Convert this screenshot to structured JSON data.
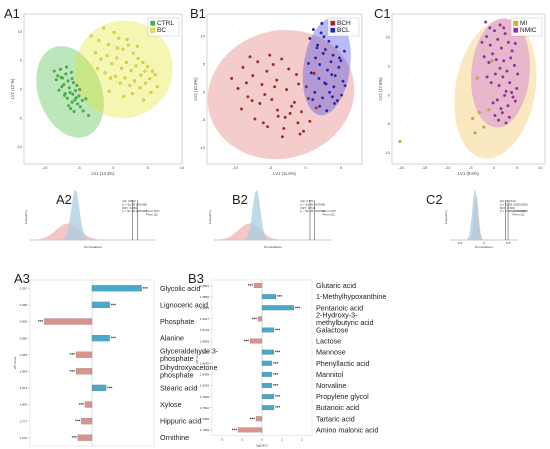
{
  "colors": {
    "ctrl": "#3dbb3d",
    "bc": "#e6e626",
    "bch": "#b22222",
    "bcl": "#2222cc",
    "mi": "#d9b030",
    "nmic": "#9a28b8",
    "bar_pos": "#4aa8c8",
    "bar_neg": "#d9948f"
  },
  "panels": {
    "A1": "A1",
    "B1": "B1",
    "C1": "C1",
    "A2": "A2",
    "B2": "B2",
    "C2": "C2",
    "A3": "A3",
    "B3": "B3"
  },
  "chart_data": [
    {
      "id": "A1",
      "type": "scatter",
      "xlabel": "LV1 (14.3%)",
      "ylabel": "LV2 (12 %)",
      "xticks": [
        "-10",
        "-5",
        "0",
        "5",
        "10"
      ],
      "yticks": [
        "10",
        "5",
        "0",
        "-5",
        "-10"
      ],
      "series": [
        {
          "name": "CTRL",
          "color": "#3dbb3d",
          "x": [
            -8.6,
            -8.1,
            -7.7,
            -7.4,
            -7.2,
            -6.9,
            -6.6,
            -6.4,
            -6.1,
            -5.8,
            -5.5,
            -5.3,
            -5.0,
            -8.3,
            -7.9,
            -7.5,
            -7.0,
            -6.7,
            -6.3,
            -6.0,
            -5.6,
            -5.2,
            -4.8,
            -4.5,
            -7.6,
            -7.1,
            -6.8,
            -6.2,
            -5.9,
            -5.4,
            -4.9,
            -4.4,
            -4.0,
            -3.6,
            -6.5,
            -6.0,
            -5.7
          ],
          "y": [
            3.1,
            2.3,
            3.4,
            1.9,
            0.8,
            2.6,
            1.4,
            0.2,
            2.9,
            1.1,
            -0.3,
            0.6,
            -1.2,
            1.6,
            -0.2,
            0.4,
            -0.8,
            -1.6,
            -0.6,
            -2.3,
            -1.9,
            -2.6,
            -3.1,
            -2.0,
            2.0,
            -1.1,
            3.8,
            -3.4,
            -0.9,
            -1.5,
            -0.1,
            -3.8,
            -1.7,
            -4.6,
            -2.9,
            1.8,
            -3.9
          ]
        },
        {
          "name": "BC",
          "color": "#e6e626",
          "x": [
            -3.2,
            -2.1,
            -1.4,
            -0.7,
            0.1,
            0.8,
            1.4,
            2.2,
            2.9,
            3.6,
            4.3,
            5.0,
            5.7,
            -2.6,
            -1.8,
            -0.9,
            -0.2,
            0.5,
            1.2,
            1.9,
            2.6,
            3.3,
            4.0,
            4.6,
            5.3,
            6.1,
            -1.2,
            -0.4,
            0.3,
            1.0,
            1.7,
            2.4,
            3.1,
            3.9,
            4.7,
            5.5,
            0.6,
            2.0,
            3.5,
            -2.3,
            -0.6,
            1.5,
            2.8,
            4.4,
            6.4
          ],
          "y": [
            9.2,
            8.4,
            10.6,
            7.7,
            9.8,
            8.8,
            6.9,
            7.6,
            6.2,
            5.3,
            4.6,
            3.9,
            3.1,
            6.3,
            5.2,
            5.8,
            4.4,
            5.4,
            3.6,
            4.6,
            3.2,
            4.0,
            2.4,
            3.1,
            1.8,
            2.5,
            2.8,
            1.9,
            2.2,
            1.0,
            1.9,
            0.6,
            1.4,
            0.2,
            1.0,
            -0.6,
            7.1,
            8.6,
            7.4,
            3.6,
            -0.4,
            -1.3,
            -0.8,
            -1.9,
            0.4
          ]
        }
      ],
      "legend": "top-right"
    },
    {
      "id": "B1",
      "type": "scatter",
      "xlabel": "LV1 (11.5%)",
      "ylabel": "LV2 (10.9%)",
      "xticks": [
        "-10",
        "-5",
        "0",
        "5"
      ],
      "yticks": [
        "10",
        "5",
        "0",
        "-5",
        "-10"
      ],
      "series": [
        {
          "name": "BCH",
          "color": "#b22222",
          "x": [
            -10.5,
            -9.6,
            -8.9,
            -8.2,
            -7.5,
            -6.8,
            -6.2,
            -5.5,
            -4.8,
            -4.1,
            -3.4,
            -2.7,
            -2.0,
            -1.3,
            -0.6,
            0.1,
            -9.1,
            -7.9,
            -6.5,
            -5.1,
            -3.9,
            -2.4,
            -1.1,
            0.4,
            1.2,
            -8.4,
            -7.2,
            -5.8,
            -4.4,
            -3.1,
            -1.6,
            -0.3,
            -6.0,
            -4.6,
            -3.3,
            -2.2,
            -1.0,
            0.6,
            1.5,
            -7.6,
            -2.9,
            -0.8,
            -5.4,
            -4.0
          ],
          "y": [
            2.4,
            0.6,
            4.4,
            -0.9,
            2.9,
            5.4,
            1.3,
            3.7,
            -1.4,
            2.1,
            5.9,
            0.4,
            -2.6,
            3.1,
            -3.6,
            0.9,
            -3.1,
            6.3,
            -2.1,
            6.6,
            -4.4,
            4.1,
            -5.6,
            -1.2,
            3.3,
            1.6,
            -4.9,
            -0.5,
            0.9,
            -6.6,
            -1.9,
            -7.1,
            -5.6,
            4.9,
            -8.1,
            -3.9,
            1.4,
            -5.3,
            -2.9,
            -1.6,
            -4.6,
            -7.6,
            -6.3,
            -3.3
          ]
        },
        {
          "name": "BCL",
          "color": "#2222cc",
          "x": [
            0.6,
            1.1,
            1.7,
            2.2,
            2.8,
            3.3,
            3.9,
            4.4,
            5.0,
            5.5,
            1.4,
            2.0,
            2.5,
            3.1,
            3.6,
            4.2,
            4.7,
            5.3,
            0.8,
            1.9,
            2.9,
            4.0,
            5.1,
            1.3,
            2.4,
            3.4,
            4.5,
            2.0,
            3.0,
            4.1,
            1.6,
            2.6,
            3.7,
            4.8,
            2.3,
            3.5,
            4.6,
            1.0,
            5.6,
            0.4,
            2.7,
            3.8
          ],
          "y": [
            9.6,
            11.2,
            8.4,
            10.6,
            7.6,
            9.1,
            6.6,
            8.1,
            5.6,
            7.3,
            6.1,
            4.9,
            6.9,
            3.9,
            5.4,
            2.9,
            4.4,
            1.9,
            3.4,
            2.4,
            1.4,
            0.9,
            -0.6,
            -0.1,
            -1.1,
            -0.1,
            -1.6,
            -2.6,
            -3.4,
            -2.1,
            7.9,
            9.9,
            3.1,
            6.1,
            12.3,
            11.6,
            10.9,
            -1.4,
            1.1,
            5.1,
            1.6,
            -0.9
          ]
        }
      ],
      "legend": "top-right"
    },
    {
      "id": "C1",
      "type": "scatter",
      "xlabel": "LV1 (9.6%)",
      "ylabel": "LV2 (17.8%)",
      "xticks": [
        "-20",
        "-15",
        "-10",
        "-5",
        "0",
        "5",
        "10"
      ],
      "yticks": [
        "10",
        "5",
        "0",
        "-5",
        "-10"
      ],
      "series": [
        {
          "name": "MI",
          "color": "#d9b030",
          "x": [
            -20.3,
            -4.6,
            -4.1,
            -3.2,
            -2.2,
            -1.1,
            -3.6,
            -0.4
          ],
          "y": [
            -8.1,
            -4.1,
            -6.6,
            -3.1,
            -5.6,
            -2.6,
            2.9,
            5.9
          ]
        },
        {
          "name": "NMIC",
          "color": "#9a28b8",
          "x": [
            -2.6,
            -1.6,
            -0.8,
            0.1,
            0.8,
            1.6,
            2.4,
            3.1,
            3.9,
            4.6,
            -2.1,
            -1.1,
            -0.3,
            0.5,
            1.3,
            2.1,
            2.8,
            3.6,
            4.4,
            5.1,
            -1.5,
            -0.6,
            0.3,
            1.1,
            1.9,
            2.6,
            3.4,
            4.1,
            4.9,
            -0.2,
            0.7,
            1.5,
            2.3,
            3.0,
            3.8,
            4.6,
            0.2,
            1.0,
            1.8,
            2.6,
            3.3,
            1.3,
            2.1,
            -0.9,
            -1.8
          ],
          "y": [
            9.1,
            10.1,
            8.6,
            11.1,
            9.6,
            8.1,
            10.6,
            9.1,
            7.6,
            8.9,
            6.6,
            5.6,
            7.1,
            6.1,
            4.6,
            5.9,
            4.1,
            6.4,
            5.1,
            3.6,
            3.1,
            2.1,
            3.6,
            1.6,
            3.1,
            0.6,
            2.1,
            -0.4,
            1.1,
            -1.4,
            -0.9,
            -2.4,
            -0.1,
            -1.9,
            0.4,
            -1.1,
            -3.6,
            -4.4,
            -3.1,
            -4.9,
            -3.9,
            12.1,
            11.6,
            11.6,
            12.6
          ]
        }
      ],
      "legend": "top-right"
    },
    {
      "id": "A2",
      "type": "area",
      "xlabel": "Permutations",
      "ylabel": "Frequency",
      "series": [
        {
          "name": "Perm R2",
          "color": "#f0b4b4",
          "center": -0.05,
          "width": 0.14,
          "height": 0.33
        },
        {
          "name": "Perm Q2",
          "color": "#a8cde0",
          "center": 0.04,
          "width": 0.05,
          "height": 1.0
        }
      ],
      "annotations": [
        "Q2: 0.844",
        "p < 5e-05 (0/2000)",
        "R2Y: 0.881",
        "p < 5e-05 (0/2000)"
      ],
      "legend_items": [
        "Perm R2Y",
        "Perm Q2"
      ]
    },
    {
      "id": "B2",
      "type": "area",
      "xlabel": "Permutations",
      "ylabel": "Frequency",
      "series": [
        {
          "name": "Perm R2",
          "color": "#f0b4b4",
          "center": -0.05,
          "width": 0.14,
          "height": 0.33
        },
        {
          "name": "Perm Q2",
          "color": "#a8cde0",
          "center": 0.04,
          "width": 0.05,
          "height": 1.0
        }
      ],
      "annotations": [
        "Q2: 0.571",
        "p < 5e-05 (0/2000)",
        "R2Y: 0.744",
        "p < 5e-05 (0/2000)"
      ],
      "legend_items": [
        "Perm R2Y",
        "Perm Q2"
      ]
    },
    {
      "id": "C2",
      "type": "area",
      "xlabel": "Permutations",
      "ylabel": "Frequency",
      "xticks": [
        "-0.5",
        "0",
        "0.5"
      ],
      "series": [
        {
          "name": "Perm R2",
          "color": "#f0b4b4",
          "center": 0.08,
          "width": 0.05,
          "height": 0.9
        },
        {
          "name": "Perm Q2",
          "color": "#a8cde0",
          "center": 0.05,
          "width": 0.06,
          "height": 1.0
        }
      ],
      "annotations": [
        "Q2: -0.0712",
        "p = 0.281 (562/2000)",
        "R2Y: 0.303",
        "p = 0.386 (772/2000)"
      ],
      "legend_items": [
        "Perm R2Y",
        "Perm Q2"
      ]
    },
    {
      "id": "A3",
      "type": "bar",
      "xlabel": "log2(FC)",
      "ylabel": "VIP score",
      "xticks": [
        "-3",
        "-2",
        "-1",
        "0",
        "1",
        "2",
        "3"
      ],
      "xlim": [
        -3.5,
        3.5
      ],
      "categories": [
        "Glycolic acid",
        "Lignoceric acid",
        "Phosphate",
        "Alanine",
        "Glyceraldehyde 3-phosphate",
        "Dihydroxyacetone phosphate",
        "Stearic acid",
        "Xylose",
        "Hippuric acid",
        "Ornithine"
      ],
      "category_lines": [
        [
          "Glycolic acid"
        ],
        [
          "Lignoceric acid"
        ],
        [
          "Phosphate"
        ],
        [
          "Alanine"
        ],
        [
          "Glyceraldehyde 3-",
          "phosphate"
        ],
        [
          "Dihydroxyacetone",
          "phosphate"
        ],
        [
          "Stearic acid"
        ],
        [
          "Xylose"
        ],
        [
          "Hippuric acid"
        ],
        [
          "Ornithine"
        ]
      ],
      "values": [
        2.8,
        1.0,
        -2.7,
        1.0,
        -0.9,
        -0.9,
        0.8,
        -0.4,
        -0.6,
        -0.8
      ],
      "vip": [
        "2.297",
        "2.068",
        "2.005",
        "1.985",
        "1.983",
        "1.894",
        "1.811",
        "1.800",
        "1.777",
        "1.670"
      ],
      "significance": [
        "***",
        "***",
        "***",
        "***",
        "***",
        "***",
        "***",
        "***",
        "***",
        "***"
      ]
    },
    {
      "id": "B3",
      "type": "bar",
      "xlabel": "log2(FC)",
      "ylabel": "VIP score",
      "xticks": [
        "-2",
        "-1",
        "0",
        "1",
        "2"
      ],
      "xlim": [
        -2.5,
        2.5
      ],
      "categories": [
        "Glutaric acid",
        "1-Methylhypoxanthine",
        "Pentanoic acid",
        "2-Hydroxy-3-methylbutyric acid",
        "Galactose",
        "Lactose",
        "Mannose",
        "Phenyllactic acid",
        "Mannitol",
        "Norvaline",
        "Propylene glycol",
        "Butanoic acid",
        "Tartaric acid",
        "Amino malonic acid"
      ],
      "category_lines": [
        [
          "Glutaric acid"
        ],
        [
          "1-Methylhypoxanthine"
        ],
        [
          "Pentanoic acid"
        ],
        [
          "2-Hydroxy-3-",
          "methylbutyric acid"
        ],
        [
          "Galactose"
        ],
        [
          "Lactose"
        ],
        [
          "Mannose"
        ],
        [
          "Phenyllactic acid"
        ],
        [
          "Mannitol"
        ],
        [
          "Norvaline"
        ],
        [
          "Propylene glycol"
        ],
        [
          "Butanoic acid"
        ],
        [
          "Tartaric acid"
        ],
        [
          "Amino malonic acid"
        ]
      ],
      "values": [
        -0.4,
        0.7,
        1.6,
        -0.2,
        0.6,
        -0.6,
        0.6,
        0.5,
        0.5,
        0.5,
        0.6,
        0.6,
        -0.3,
        -1.2
      ],
      "vip": [
        "2.0694",
        "1.9856",
        "1.9693",
        "1.9227",
        "1.9139",
        "1.8826",
        "1.8582",
        "1.8435",
        "1.8399",
        "1.8200",
        "1.7836",
        "1.7692",
        "1.7568",
        "1.7399"
      ],
      "significance": [
        "***",
        "***",
        "***",
        "***",
        "***",
        "***",
        "***",
        "***",
        "***",
        "***",
        "***",
        "***",
        "***",
        "***"
      ]
    }
  ]
}
